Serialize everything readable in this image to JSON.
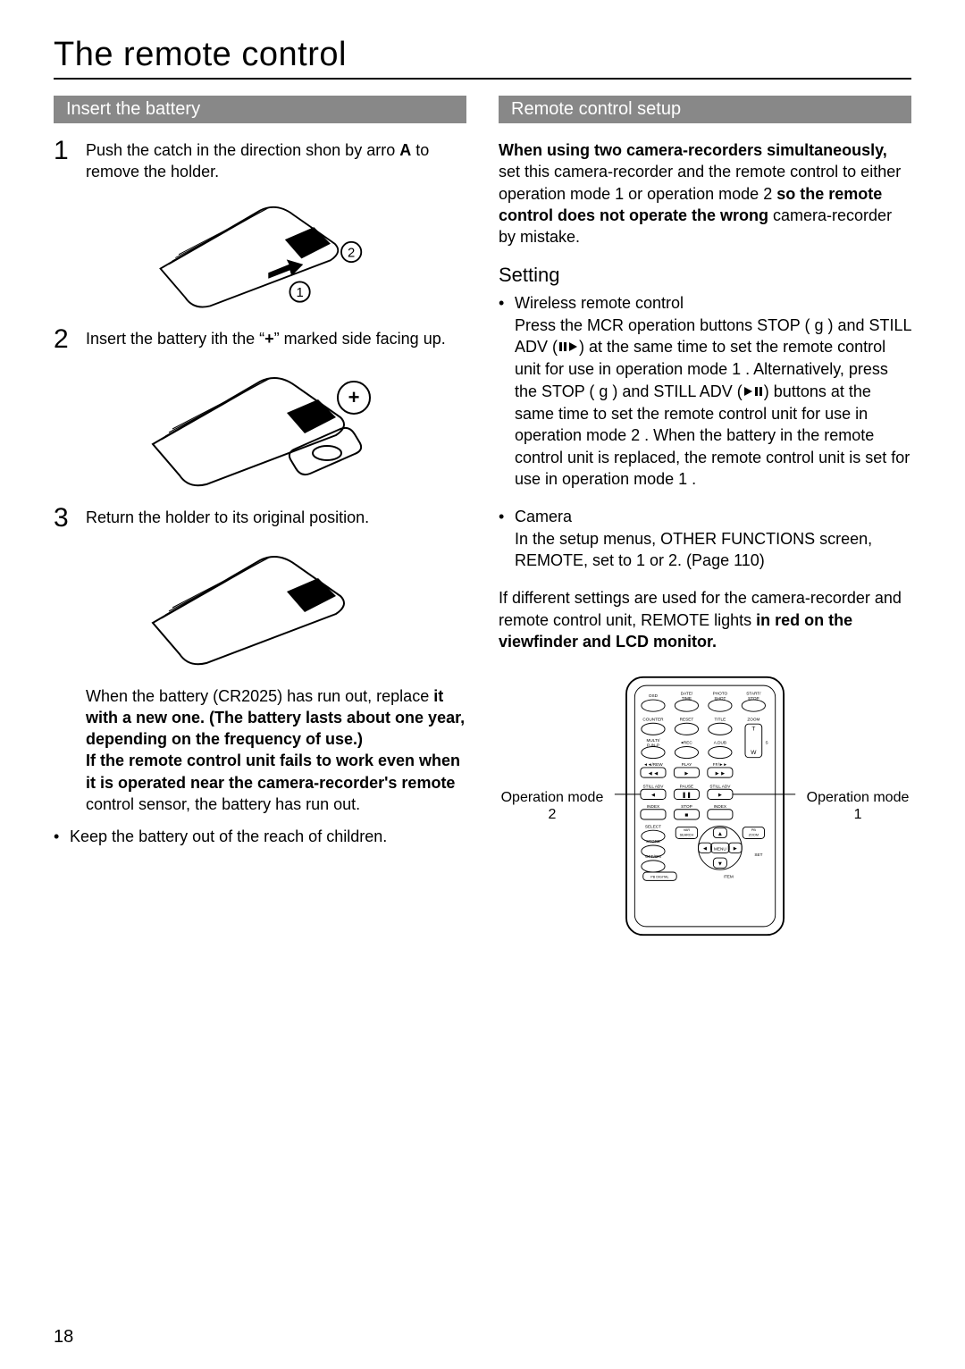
{
  "page": {
    "title": "The remote control",
    "number": "18"
  },
  "left": {
    "header": "Insert the battery",
    "steps": [
      {
        "num": "1",
        "text_parts": [
          "Push the catch in the direction shon by arro ",
          {
            "bold": "A"
          },
          " to remove the holder."
        ]
      },
      {
        "num": "2",
        "text_parts": [
          "Insert the battery ith the “",
          {
            "bold": "+"
          },
          "” marked side facing up."
        ]
      },
      {
        "num": "3",
        "text_parts": [
          "Return the holder to its original position."
        ]
      }
    ],
    "note_parts": [
      "When the battery (CR2025) has run out, replace ",
      {
        "bold": "it with a new one. (The battery lasts about one year, depending on the frequency of use.)"
      },
      "\n",
      {
        "bold": "If the remote control unit fails to work even when it is operated near the camera-recorder's remote"
      },
      " control sensor, the battery has run out."
    ],
    "keep_out": "Keep the battery out of the reach of children."
  },
  "right": {
    "header": "Remote control setup",
    "intro_parts": [
      {
        "bold": "When using two camera-recorders simultaneously,"
      },
      " set this camera-recorder and the remote control to either operation mode 1 or operation mode 2 ",
      {
        "bold": "so the remote control does not operate the wrong"
      },
      " camera-recorder by mistake."
    ],
    "subheading": "Setting",
    "bullets": [
      {
        "title": "Wireless remote control",
        "body_parts": [
          "Press the MCR operation buttons STOP ( g ) and STILL ADV (",
          {
            "icon": "pause-step-right"
          },
          ") at the same time to set the remote control unit for use in operation mode 1 . Alternatively, press the STOP ( g ) and STILL ADV (",
          {
            "icon": "step-left-pause"
          },
          ") buttons at the same time to set the remote control unit for use in operation mode 2 . When the battery in the remote control unit is replaced, the remote control unit is set for use in operation mode 1 ."
        ]
      },
      {
        "title": "Camera",
        "body_parts": [
          "In the setup menus, OTHER FUNCTIONS screen, REMOTE, set to 1 or 2. (Page 110)"
        ]
      }
    ],
    "after_parts": [
      "If different settings are used for the camera-recorder and remote control unit, REMOTE lights ",
      {
        "bold": "in red on the viewfinder and LCD monitor."
      }
    ],
    "diagram": {
      "left_label": "Operation mode 2",
      "right_label": "Operation mode 1",
      "rows": [
        [
          "OSD",
          "DATE/\nTIME",
          "PHOTO\nSHOT",
          "START/\nSTOP"
        ],
        [
          "COUNTER",
          "RESET",
          "TITLE",
          "ZOOM"
        ],
        [
          "MULTI/\nP-IN-P",
          "●REC",
          "A.DUB",
          "T"
        ],
        [
          "◄◄",
          "►",
          "►►",
          "W"
        ],
        [
          "STILL ADV",
          "PAUSE",
          "STILL ADV",
          ""
        ],
        [
          "◄",
          "❚❚",
          "►",
          ""
        ],
        [
          "INDEX",
          "STOP",
          "INDEX",
          ""
        ],
        [
          "",
          "■",
          "",
          ""
        ],
        [
          "SELECT",
          "VAR\nSEARCH",
          "▲",
          "PB\nZOOM"
        ],
        [
          "STORE",
          "◄",
          "MENU",
          "►"
        ],
        [
          "OFF/ON",
          "",
          "▼",
          "SET"
        ],
        [
          "PB DIGITAL",
          "",
          "ITEM",
          ""
        ]
      ],
      "colors": {
        "outline": "#000000",
        "text": "#000000",
        "rew_label": "◄◄/REW",
        "play_label": "PLAY",
        "ff_label": "FF/►►"
      }
    }
  }
}
